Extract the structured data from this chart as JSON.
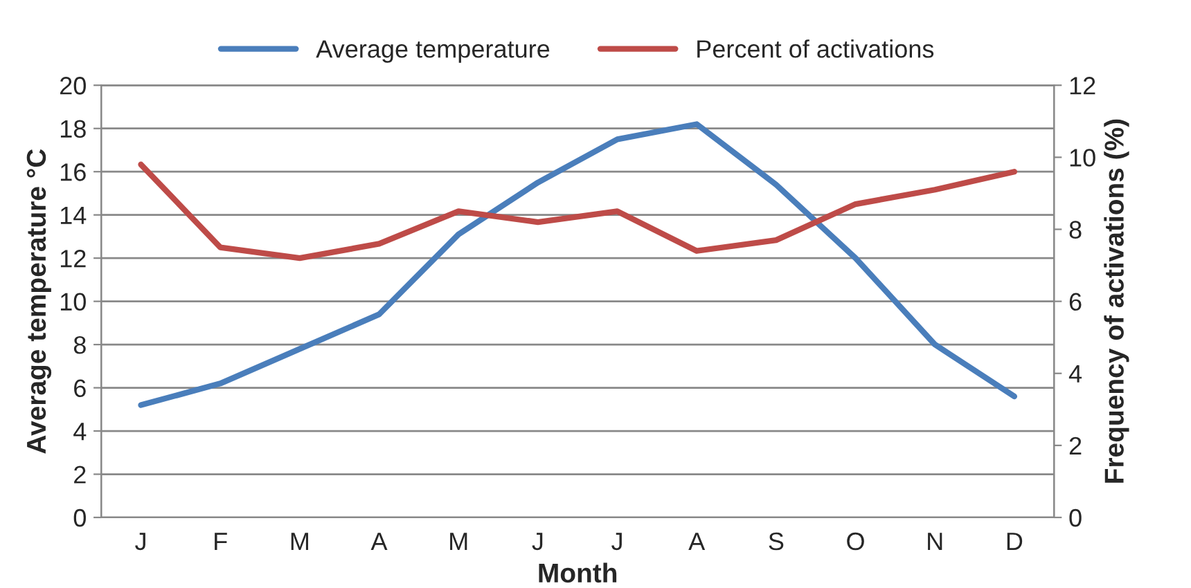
{
  "chart_data": {
    "type": "line",
    "categories": [
      "J",
      "F",
      "M",
      "A",
      "M",
      "J",
      "J",
      "A",
      "S",
      "O",
      "N",
      "D"
    ],
    "xlabel": "Month",
    "ylabel": "Average temperature °C",
    "y2label": "Frequency of activations (%)",
    "series": [
      {
        "name": "Average temperature",
        "color": "#4a7ebb",
        "values": [
          5.2,
          6.2,
          7.8,
          9.4,
          13.1,
          15.5,
          17.5,
          18.2,
          15.4,
          12.0,
          8.0,
          5.6
        ]
      },
      {
        "name": "Percent of activations",
        "color": "#be4b48",
        "axis": "y2",
        "values": [
          9.8,
          7.5,
          7.2,
          7.6,
          8.5,
          8.2,
          8.5,
          7.4,
          7.7,
          8.7,
          9.1,
          9.6
        ]
      }
    ],
    "ylim": [
      0,
      20
    ],
    "yticks": [
      0,
      2,
      4,
      6,
      8,
      10,
      12,
      14,
      16,
      18,
      20
    ],
    "y2lim": [
      0,
      12
    ],
    "y2ticks": [
      0,
      2,
      4,
      6,
      8,
      10,
      12
    ],
    "grid": "y",
    "legend": "top",
    "marker": "none",
    "line_style": "solid"
  }
}
